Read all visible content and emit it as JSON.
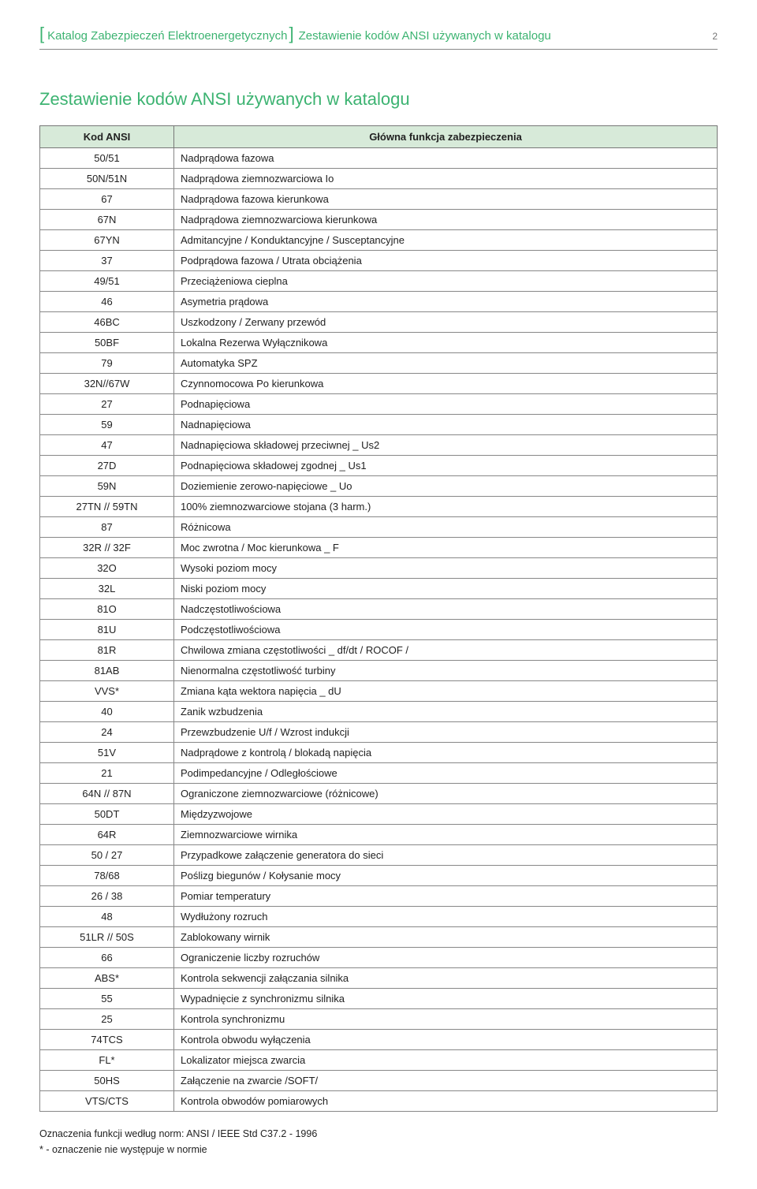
{
  "page": {
    "number": "2",
    "catalog_label": "Katalog Zabezpieczeń Elektroenergetycznych",
    "section_label": "Zestawienie kodów ANSI używanych w katalogu",
    "title": "Zestawienie kodów ANSI używanych w katalogu"
  },
  "table": {
    "header_code": "Kod ANSI",
    "header_function": "Główna funkcja zabezpieczenia",
    "header_bg_color": "#d7ead9",
    "border_color": "#888888",
    "font_size": 13,
    "rows": [
      {
        "code": "50/51",
        "func": "Nadprądowa fazowa"
      },
      {
        "code": "50N/51N",
        "func": "Nadprądowa ziemnozwarciowa Io"
      },
      {
        "code": "67",
        "func": "Nadprądowa fazowa kierunkowa"
      },
      {
        "code": "67N",
        "func": "Nadprądowa ziemnozwarciowa kierunkowa"
      },
      {
        "code": "67YN",
        "func": "Admitancyjne / Konduktancyjne / Susceptancyjne"
      },
      {
        "code": "37",
        "func": "Podprądowa fazowa / Utrata obciążenia"
      },
      {
        "code": "49/51",
        "func": "Przeciążeniowa cieplna"
      },
      {
        "code": "46",
        "func": "Asymetria prądowa"
      },
      {
        "code": "46BC",
        "func": "Uszkodzony / Zerwany przewód"
      },
      {
        "code": "50BF",
        "func": "Lokalna Rezerwa Wyłącznikowa"
      },
      {
        "code": "79",
        "func": "Automatyka SPZ"
      },
      {
        "code": "32N//67W",
        "func": "Czynnomocowa Po kierunkowa"
      },
      {
        "code": "27",
        "func": "Podnapięciowa"
      },
      {
        "code": "59",
        "func": "Nadnapięciowa"
      },
      {
        "code": "47",
        "func": "Nadnapięciowa składowej przeciwnej _ Us2"
      },
      {
        "code": "27D",
        "func": "Podnapięciowa składowej zgodnej _ Us1"
      },
      {
        "code": "59N",
        "func": "Doziemienie zerowo-napięciowe _ Uo"
      },
      {
        "code": "27TN // 59TN",
        "func": "100% ziemnozwarciowe stojana (3 harm.)"
      },
      {
        "code": "87",
        "func": "Różnicowa"
      },
      {
        "code": "32R // 32F",
        "func": "Moc zwrotna / Moc kierunkowa _ F"
      },
      {
        "code": "32O",
        "func": "Wysoki poziom mocy"
      },
      {
        "code": "32L",
        "func": "Niski poziom mocy"
      },
      {
        "code": "81O",
        "func": "Nadczęstotliwościowa"
      },
      {
        "code": "81U",
        "func": "Podczęstotliwościowa"
      },
      {
        "code": "81R",
        "func": "Chwilowa zmiana częstotliwości _ df/dt / ROCOF /"
      },
      {
        "code": "81AB",
        "func": "Nienormalna częstotliwość turbiny"
      },
      {
        "code": "VVS*",
        "func": "Zmiana kąta wektora napięcia _ dU"
      },
      {
        "code": "40",
        "func": "Zanik wzbudzenia"
      },
      {
        "code": "24",
        "func": "Przewzbudzenie U/f / Wzrost indukcji"
      },
      {
        "code": "51V",
        "func": "Nadprądowe z kontrolą / blokadą napięcia"
      },
      {
        "code": "21",
        "func": "Podimpedancyjne / Odległościowe"
      },
      {
        "code": "64N // 87N",
        "func": "Ograniczone ziemnozwarciowe (różnicowe)"
      },
      {
        "code": "50DT",
        "func": "Międzyzwojowe"
      },
      {
        "code": "64R",
        "func": "Ziemnozwarciowe wirnika"
      },
      {
        "code": "50 / 27",
        "func": "Przypadkowe załączenie generatora do sieci"
      },
      {
        "code": "78/68",
        "func": "Poślizg biegunów / Kołysanie mocy"
      },
      {
        "code": "26 / 38",
        "func": "Pomiar temperatury"
      },
      {
        "code": "48",
        "func": "Wydłużony rozruch"
      },
      {
        "code": "51LR // 50S",
        "func": "Zablokowany wirnik"
      },
      {
        "code": "66",
        "func": "Ograniczenie liczby rozruchów"
      },
      {
        "code": "ABS*",
        "func": "Kontrola sekwencji załączania silnika"
      },
      {
        "code": "55",
        "func": "Wypadnięcie z synchronizmu silnika"
      },
      {
        "code": "25",
        "func": "Kontrola synchronizmu"
      },
      {
        "code": "74TCS",
        "func": "Kontrola obwodu wyłączenia"
      },
      {
        "code": "FL*",
        "func": "Lokalizator miejsca zwarcia"
      },
      {
        "code": "50HS",
        "func": "Załączenie na zwarcie /SOFT/"
      },
      {
        "code": "VTS/CTS",
        "func": "Kontrola obwodów pomiarowych"
      }
    ]
  },
  "footnotes": {
    "line1": "Oznaczenia funkcji według norm: ANSI / IEEE Std C37.2 - 1996",
    "line2": "* - oznaczenie nie występuje w normie"
  },
  "colors": {
    "accent_green": "#3cb371",
    "text": "#222222",
    "border": "#888888",
    "header_bg": "#d7ead9",
    "background": "#ffffff"
  }
}
